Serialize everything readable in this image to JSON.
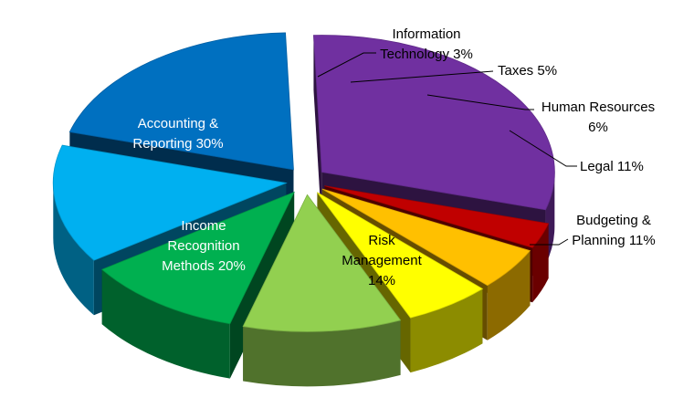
{
  "chart_data": {
    "type": "pie",
    "style": "3d-exploded",
    "title": "",
    "slices": [
      {
        "label_lines": [
          "Accounting &",
          "Reporting 30%"
        ],
        "value": 30,
        "color": "#7030a0",
        "label_color": "#ffffff",
        "label_position": "inside"
      },
      {
        "label_lines": [
          "Information",
          "Technology 3%"
        ],
        "value": 3,
        "color": "#c00000",
        "label_color": "#000000",
        "label_position": "outside"
      },
      {
        "label_lines": [
          "Taxes 5%"
        ],
        "value": 5,
        "color": "#ffc000",
        "label_color": "#000000",
        "label_position": "outside"
      },
      {
        "label_lines": [
          "Human Resources",
          "6%"
        ],
        "value": 6,
        "color": "#ffff00",
        "label_color": "#000000",
        "label_position": "outside"
      },
      {
        "label_lines": [
          "Legal 11%"
        ],
        "value": 11,
        "color": "#92d050",
        "label_color": "#000000",
        "label_position": "outside"
      },
      {
        "label_lines": [
          "Budgeting &",
          "Planning 11%"
        ],
        "value": 11,
        "color": "#00b050",
        "label_color": "#000000",
        "label_position": "outside"
      },
      {
        "label_lines": [
          "Risk",
          "Management",
          "14%"
        ],
        "value": 14,
        "color": "#00b0f0",
        "label_color": "#000000",
        "label_position": "inside"
      },
      {
        "label_lines": [
          "Income",
          "Recognition",
          "Methods 20%"
        ],
        "value": 20,
        "color": "#0070c0",
        "label_color": "#ffffff",
        "label_position": "inside"
      }
    ]
  }
}
